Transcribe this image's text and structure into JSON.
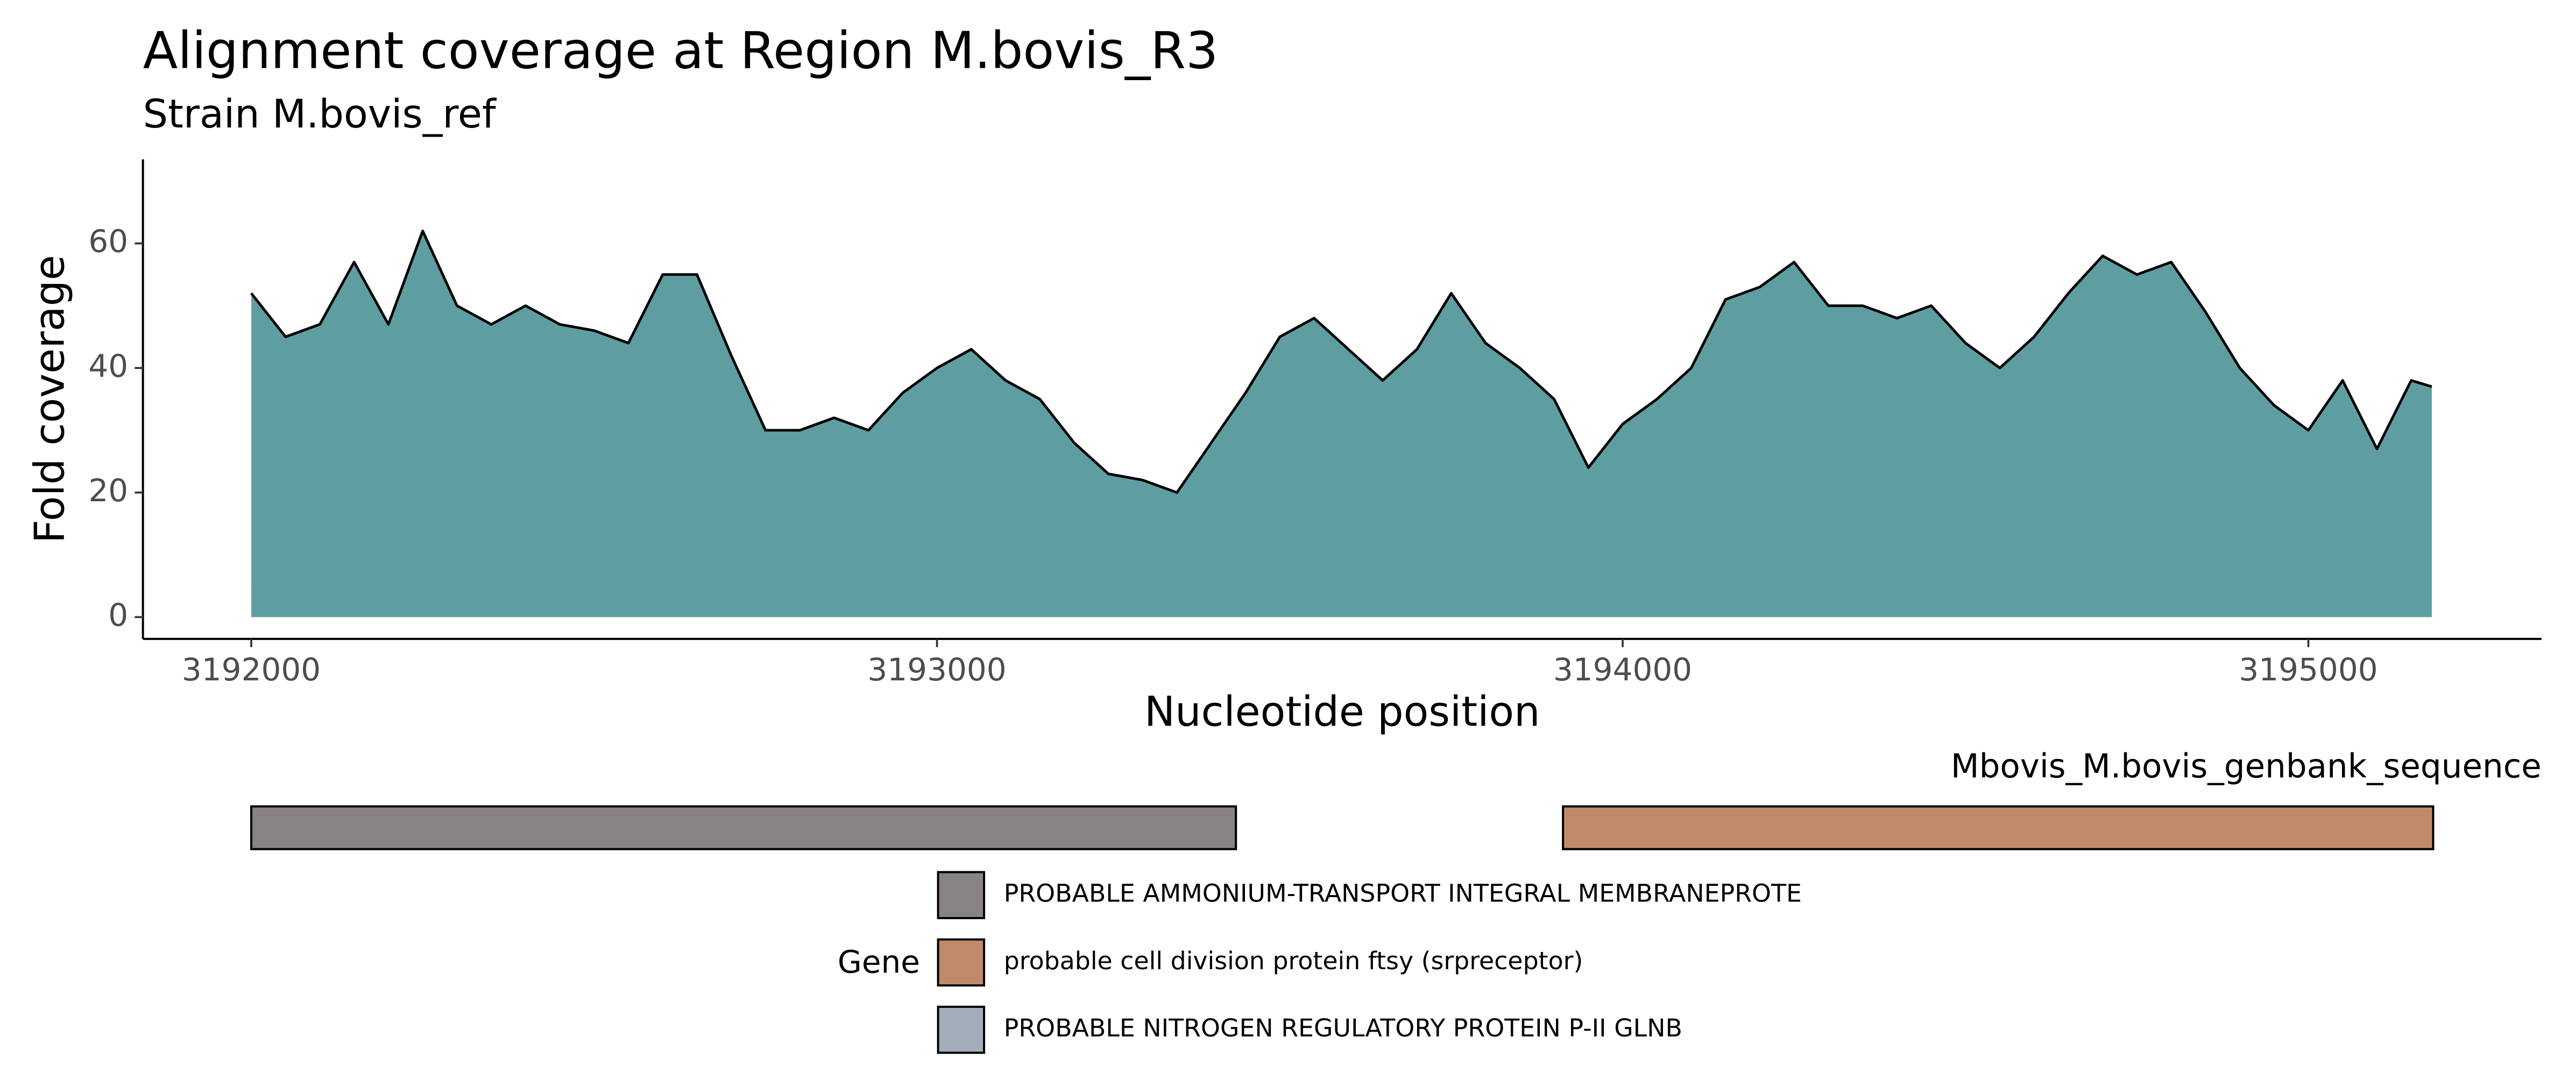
{
  "chart_data": [
    {
      "type": "area",
      "title": "Alignment coverage at Region M.bovis_R3",
      "subtitle": "Strain M.bovis_ref",
      "x_label": "Nucleotide position",
      "y_label": "Fold coverage",
      "color": "#5f9ea0",
      "line_color": "#000000",
      "x": [
        3192000,
        3192050,
        3192100,
        3192150,
        3192200,
        3192250,
        3192300,
        3192350,
        3192400,
        3192450,
        3192500,
        3192550,
        3192600,
        3192650,
        3192700,
        3192750,
        3192800,
        3192850,
        3192900,
        3192950,
        3193000,
        3193050,
        3193100,
        3193150,
        3193200,
        3193250,
        3193300,
        3193350,
        3193400,
        3193450,
        3193500,
        3193550,
        3193600,
        3193650,
        3193700,
        3193750,
        3193800,
        3193850,
        3193900,
        3193950,
        3194000,
        3194050,
        3194100,
        3194150,
        3194200,
        3194250,
        3194300,
        3194350,
        3194400,
        3194450,
        3194500,
        3194550,
        3194600,
        3194650,
        3194700,
        3194750,
        3194800,
        3194850,
        3194900,
        3194950,
        3195000,
        3195050,
        3195100,
        3195150,
        3195180
      ],
      "y": [
        52,
        45,
        47,
        57,
        47,
        62,
        50,
        47,
        50,
        47,
        46,
        44,
        55,
        55,
        42,
        30,
        30,
        32,
        30,
        36,
        40,
        43,
        38,
        35,
        28,
        23,
        22,
        20,
        28,
        36,
        45,
        48,
        43,
        38,
        43,
        52,
        44,
        40,
        35,
        24,
        31,
        35,
        40,
        51,
        53,
        57,
        50,
        50,
        48,
        50,
        44,
        40,
        45,
        52,
        58,
        55,
        57,
        49,
        40,
        34,
        30,
        38,
        27,
        38,
        37
      ],
      "xlim": [
        3191842,
        3195340
      ],
      "ylim": [
        -3.5,
        73.5
      ],
      "xticks": [
        3192000,
        3193000,
        3194000,
        3195000
      ],
      "yticks": [
        0,
        20,
        40,
        60
      ]
    },
    {
      "type": "gene-track",
      "track_label": "Mbovis_M.bovis_genbank_sequence",
      "legend_title": "Gene",
      "xlim": [
        3191842,
        3195340
      ],
      "series": [
        {
          "name": "PROBABLE AMMONIUM-TRANSPORT INTEGRAL MEMBRANEPROTE",
          "color": "#878383",
          "start": 3192000,
          "end": 3193436
        },
        {
          "name": "probable cell division protein ftsy (srpreceptor)",
          "color": "#c08a68",
          "start": 3193913,
          "end": 3195182
        },
        {
          "name": "PROBABLE NITROGEN REGULATORY PROTEIN P-II GLNB",
          "color": "#a4adba"
        }
      ]
    }
  ]
}
